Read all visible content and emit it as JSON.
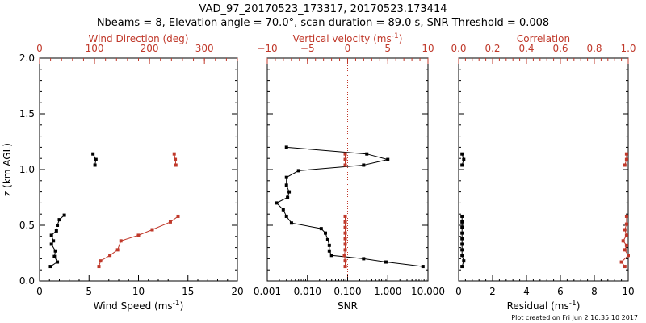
{
  "title_line1": "VAD_97_20170523_173317, 20170523.173414",
  "title_line2": "Nbeams = 8, Elevation angle = 70.0°, scan duration = 89.0 s, SNR Threshold = 0.008",
  "footer": "Plot created on Fri Jun  2 16:35:10 2017",
  "colors": {
    "black": "#000000",
    "red": "#c0392b"
  },
  "chart_data": [
    {
      "type": "line",
      "ylabel": "z (km AGL)",
      "ylim": [
        0,
        2
      ],
      "yticks": [
        "0.0",
        "0.5",
        "1.0",
        "1.5",
        "2.0"
      ],
      "bottom_axis": {
        "label": "Wind Speed (ms⁻¹)",
        "range": [
          0,
          20
        ],
        "ticks": [
          "0",
          "5",
          "10",
          "15",
          "20"
        ],
        "scale": "linear"
      },
      "top_axis": {
        "label": "Wind Direction (deg)",
        "range": [
          0,
          360
        ],
        "ticks": [
          "0",
          "100",
          "200",
          "300"
        ],
        "scale": "linear"
      },
      "series": [
        {
          "axis": "bottom",
          "color": "black",
          "segments": [
            [
              [
                1.1,
                0.13
              ],
              [
                1.8,
                0.17
              ],
              [
                1.5,
                0.22
              ],
              [
                1.6,
                0.27
              ],
              [
                1.2,
                0.33
              ],
              [
                1.4,
                0.36
              ],
              [
                1.2,
                0.41
              ],
              [
                1.7,
                0.45
              ],
              [
                1.8,
                0.5
              ],
              [
                2.0,
                0.55
              ],
              [
                2.5,
                0.59
              ]
            ],
            [
              [
                5.4,
                1.14
              ],
              [
                5.7,
                1.09
              ],
              [
                5.6,
                1.04
              ]
            ]
          ]
        },
        {
          "axis": "top",
          "color": "red",
          "segments": [
            [
              [
                108,
                0.13
              ],
              [
                111,
                0.18
              ],
              [
                128,
                0.23
              ],
              [
                142,
                0.28
              ],
              [
                148,
                0.36
              ],
              [
                180,
                0.41
              ],
              [
                205,
                0.46
              ],
              [
                238,
                0.53
              ],
              [
                252,
                0.58
              ]
            ],
            [
              [
                245,
                1.14
              ],
              [
                247,
                1.09
              ],
              [
                248,
                1.04
              ]
            ]
          ]
        }
      ]
    },
    {
      "type": "line",
      "ylim": [
        0,
        2
      ],
      "bottom_axis": {
        "label": "SNR",
        "range": [
          0.001,
          10
        ],
        "ticks": [
          "0.001",
          "0.010",
          "0.100",
          "1.000",
          "10.000"
        ],
        "scale": "log"
      },
      "top_axis": {
        "label": "Vertical velocity (ms⁻¹)",
        "range": [
          -10,
          10
        ],
        "ticks": [
          "-10",
          "-5",
          "0",
          "5",
          "10"
        ],
        "scale": "linear",
        "zero_line": "dotted"
      },
      "series": [
        {
          "axis": "bottom",
          "color": "black",
          "segments": [
            [
              [
                7.5,
                0.13
              ],
              [
                0.9,
                0.17
              ],
              [
                0.25,
                0.2
              ],
              [
                0.04,
                0.23
              ],
              [
                0.035,
                0.27
              ],
              [
                0.035,
                0.32
              ],
              [
                0.032,
                0.37
              ],
              [
                0.028,
                0.43
              ],
              [
                0.022,
                0.47
              ],
              [
                0.004,
                0.52
              ],
              [
                0.003,
                0.58
              ],
              [
                0.0025,
                0.64
              ],
              [
                0.0017,
                0.7
              ],
              [
                0.0032,
                0.75
              ],
              [
                0.0035,
                0.8
              ],
              [
                0.003,
                0.86
              ],
              [
                0.003,
                0.93
              ],
              [
                0.006,
                0.99
              ],
              [
                0.25,
                1.04
              ],
              [
                1.0,
                1.09
              ],
              [
                0.3,
                1.14
              ],
              [
                0.003,
                1.2
              ]
            ]
          ]
        },
        {
          "axis": "top",
          "color": "red",
          "segments": [
            [
              [
                -0.3,
                0.13
              ],
              [
                -0.3,
                0.18
              ],
              [
                -0.4,
                0.23
              ],
              [
                -0.3,
                0.28
              ],
              [
                -0.3,
                0.33
              ],
              [
                -0.3,
                0.38
              ],
              [
                -0.3,
                0.43
              ],
              [
                -0.3,
                0.48
              ],
              [
                -0.3,
                0.53
              ],
              [
                -0.3,
                0.58
              ]
            ],
            [
              [
                -0.3,
                1.04
              ],
              [
                -0.3,
                1.09
              ],
              [
                -0.3,
                1.14
              ]
            ]
          ]
        }
      ]
    },
    {
      "type": "line",
      "ylim": [
        0,
        2
      ],
      "bottom_axis": {
        "label": "Residual (ms⁻¹)",
        "range": [
          0,
          10
        ],
        "ticks": [
          "0",
          "2",
          "4",
          "6",
          "8",
          "10"
        ],
        "scale": "linear"
      },
      "top_axis": {
        "label": "Correlation",
        "range": [
          0,
          1
        ],
        "ticks": [
          "0.0",
          "0.2",
          "0.4",
          "0.6",
          "0.8",
          "1.0"
        ],
        "scale": "linear"
      },
      "series": [
        {
          "axis": "bottom",
          "color": "black",
          "segments": [
            [
              [
                0.2,
                0.13
              ],
              [
                0.3,
                0.18
              ],
              [
                0.2,
                0.23
              ],
              [
                0.2,
                0.28
              ],
              [
                0.2,
                0.33
              ],
              [
                0.2,
                0.38
              ],
              [
                0.2,
                0.43
              ],
              [
                0.2,
                0.48
              ],
              [
                0.2,
                0.53
              ],
              [
                0.2,
                0.58
              ]
            ],
            [
              [
                0.2,
                1.04
              ],
              [
                0.3,
                1.09
              ],
              [
                0.2,
                1.14
              ]
            ]
          ]
        },
        {
          "axis": "top",
          "color": "red",
          "segments": [
            [
              [
                0.98,
                0.13
              ],
              [
                0.96,
                0.17
              ],
              [
                1.0,
                0.23
              ],
              [
                0.98,
                0.28
              ],
              [
                0.99,
                0.32
              ],
              [
                0.97,
                0.36
              ],
              [
                0.99,
                0.41
              ],
              [
                0.98,
                0.46
              ],
              [
                0.99,
                0.51
              ],
              [
                0.99,
                0.58
              ]
            ],
            [
              [
                0.98,
                1.04
              ],
              [
                0.99,
                1.09
              ],
              [
                0.99,
                1.14
              ]
            ]
          ]
        }
      ]
    }
  ]
}
